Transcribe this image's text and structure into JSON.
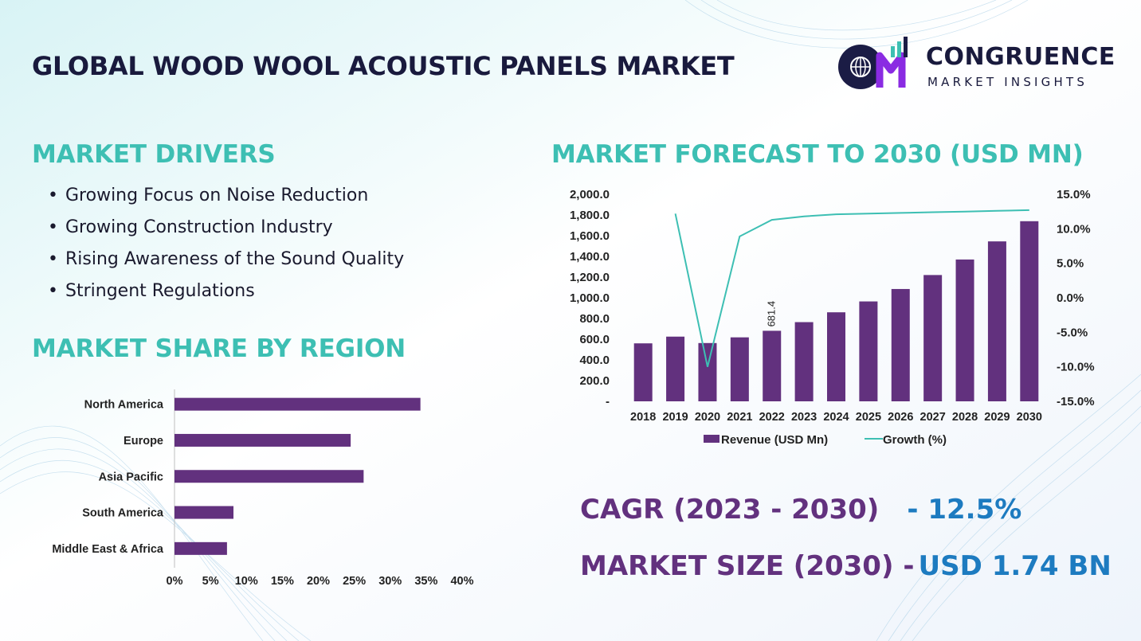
{
  "title": "GLOBAL WOOD WOOL ACOUSTIC PANELS MARKET",
  "logo": {
    "name": "CONGRUENCE",
    "subtitle": "MARKET INSIGHTS"
  },
  "drivers": {
    "heading": "MARKET DRIVERS",
    "items": [
      "Growing Focus on Noise Reduction",
      "Growing Construction Industry",
      "Rising Awareness of the Sound Quality",
      "Stringent Regulations"
    ]
  },
  "region": {
    "heading": "MARKET SHARE BY REGION"
  },
  "forecast": {
    "heading": "MARKET FORECAST TO 2030 (USD MN)"
  },
  "kpis": {
    "cagr_label": "CAGR (2023 - 2030)",
    "cagr_value": "- 12.5%",
    "size_label": "MARKET SIZE (2030) -",
    "size_value": "USD 1.74 BN"
  },
  "colors": {
    "purple": "#62317e",
    "teal": "#3dbfb3",
    "navy": "#191a3d",
    "blue": "#1d7bc0"
  },
  "chart_data": [
    {
      "type": "bar",
      "orientation": "horizontal",
      "title": "",
      "categories": [
        "North America",
        "Europe",
        "Asia Pacific",
        "South America",
        "Middle East & Africa"
      ],
      "values": [
        34.2,
        24.5,
        26.3,
        8.2,
        7.3
      ],
      "xlim": [
        0,
        40
      ],
      "xticks": [
        "0%",
        "5%",
        "10%",
        "15%",
        "20%",
        "25%",
        "30%",
        "35%",
        "40%"
      ],
      "grid": false,
      "legend": "none"
    },
    {
      "type": "bar+line",
      "title": "",
      "categories": [
        "2018",
        "2019",
        "2020",
        "2021",
        "2022",
        "2023",
        "2024",
        "2025",
        "2026",
        "2027",
        "2028",
        "2029",
        "2030"
      ],
      "series": [
        {
          "name": "Revenue (USD Mn)",
          "type": "bar",
          "axis": "left",
          "values": [
            560,
            625,
            563,
            618,
            681.4,
            765,
            860,
            965,
            1085,
            1220,
            1370,
            1545,
            1740
          ]
        },
        {
          "name": "Growth (%)",
          "type": "line",
          "axis": "right",
          "values": [
            null,
            12.2,
            -10.0,
            8.9,
            11.3,
            11.8,
            12.1,
            12.2,
            12.3,
            12.4,
            12.5,
            12.6,
            12.7
          ]
        }
      ],
      "data_labels": [
        {
          "category": "2022",
          "text": "681.4"
        }
      ],
      "ylim_left": [
        0,
        2000
      ],
      "yticks_left": [
        "-",
        "200.0",
        "400.0",
        "600.0",
        "800.0",
        "1,000.0",
        "1,200.0",
        "1,400.0",
        "1,600.0",
        "1,800.0",
        "2,000.0"
      ],
      "ylim_right": [
        -15,
        15
      ],
      "yticks_right": [
        "-15.0%",
        "-10.0%",
        "-5.0%",
        "0.0%",
        "5.0%",
        "10.0%",
        "15.0%"
      ],
      "grid": false,
      "legend": "bottom"
    }
  ]
}
